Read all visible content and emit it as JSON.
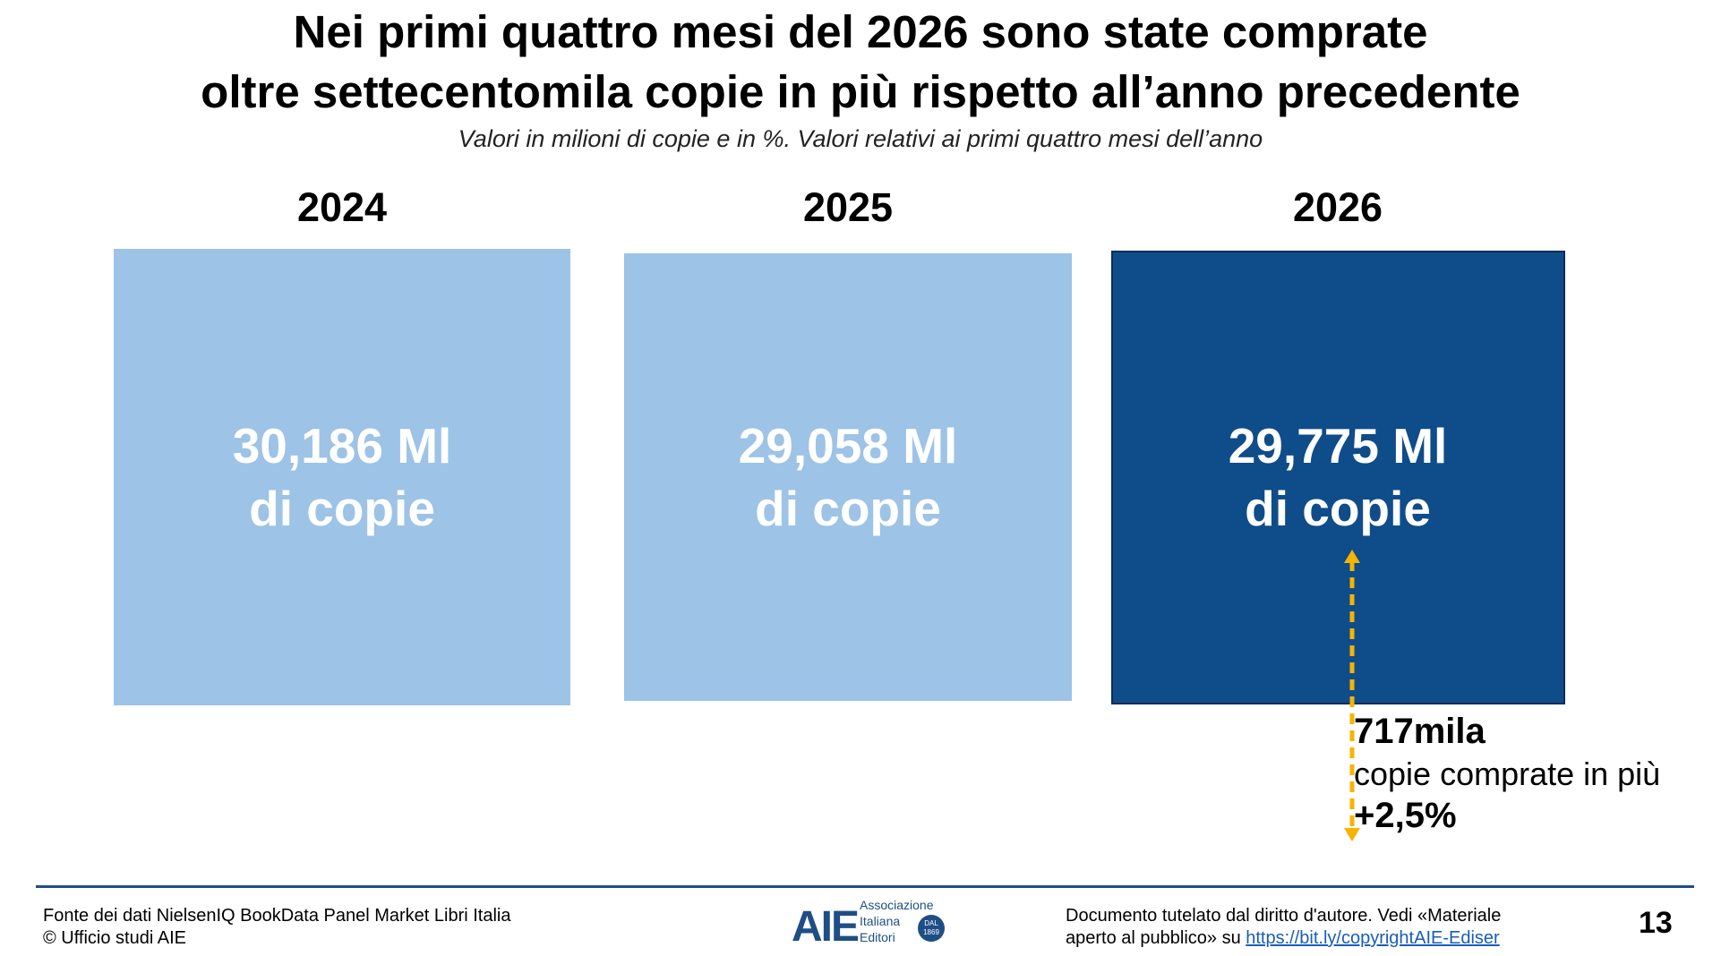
{
  "chart_data": {
    "type": "bar",
    "title": "Nei primi quattro mesi del 2026 sono state comprate oltre settecentomila copie in più rispetto all’anno precedente",
    "title_lines": [
      "Nei primi quattro mesi del 2026 sono state comprate",
      "oltre settecentomila copie in più rispetto all’anno precedente"
    ],
    "subtitle": "Valori in milioni di copie e in %. Valori relativi ai primi quattro mesi dell’anno",
    "categories": [
      "2024",
      "2025",
      "2026"
    ],
    "values": [
      30.186,
      29.058,
      29.775
    ],
    "value_labels": [
      "30,186 Ml",
      "29,058 Ml",
      "29,775 Ml"
    ],
    "unit_label": "di copie",
    "colors": [
      "#9dc3e6",
      "#9dc3e6",
      "#0f4c8a"
    ],
    "highlight_border": "#0b2e5c",
    "callout": {
      "value": "717mila",
      "text": "copie comprate in più",
      "percent": "+2,5%",
      "arrow_color": "#f4b400"
    }
  },
  "footer": {
    "source_line1": "Fonte dei dati NielsenIQ BookData Panel Market Libri Italia",
    "source_line2": "© Ufficio studi AIE",
    "copyright_line1": "Documento tutelato dal diritto d'autore. Vedi «Materiale",
    "copyright_line2_prefix": "aperto al pubblico» su ",
    "copyright_link": "https://bit.ly/copyrightAIE-Ediser",
    "page_number": "13"
  },
  "logo": {
    "mark": "AIE",
    "line1": "Associazione",
    "line2": "Italiana",
    "line3": "Editori",
    "seal_top": "DAL",
    "seal_bottom": "1869"
  }
}
